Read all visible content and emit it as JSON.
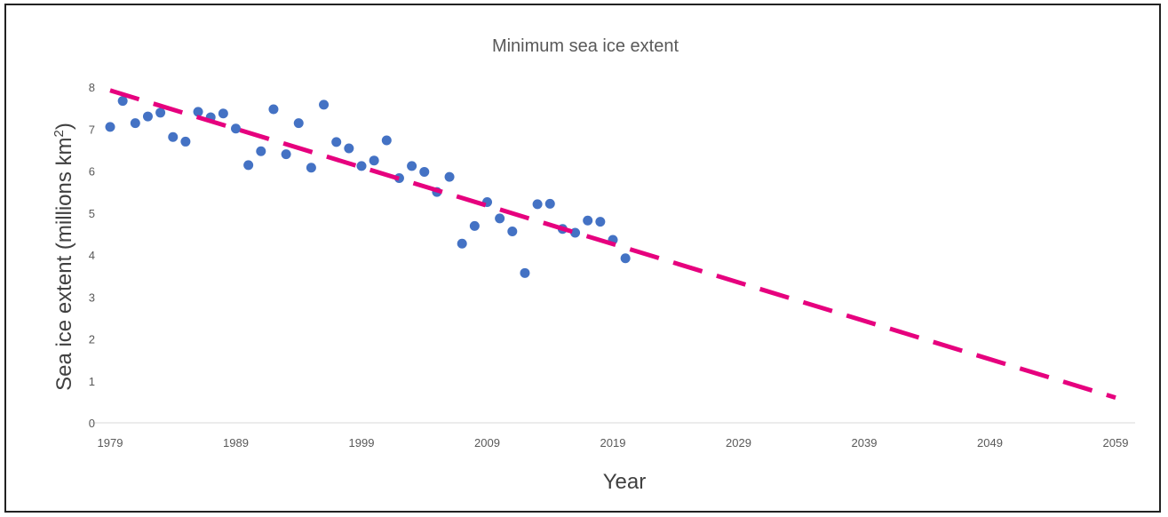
{
  "chart_data": {
    "type": "scatter",
    "title": "Minimum sea ice extent",
    "xlabel": "Year",
    "ylabel_main": "Sea ice extent (millions km",
    "ylabel_sup": "2",
    "ylabel_close": ")",
    "xlim": [
      1979,
      2059
    ],
    "ylim": [
      0,
      8
    ],
    "xticks": [
      1979,
      1989,
      1999,
      2009,
      2019,
      2029,
      2039,
      2049,
      2059
    ],
    "yticks": [
      0,
      1,
      2,
      3,
      4,
      5,
      6,
      7,
      8
    ],
    "grid": false,
    "legend": "none",
    "series": [
      {
        "marker_color": "#4472C4",
        "points": [
          [
            1979,
            7.05
          ],
          [
            1980,
            7.67
          ],
          [
            1981,
            7.14
          ],
          [
            1982,
            7.3
          ],
          [
            1983,
            7.39
          ],
          [
            1984,
            6.81
          ],
          [
            1985,
            6.7
          ],
          [
            1986,
            7.41
          ],
          [
            1987,
            7.28
          ],
          [
            1988,
            7.37
          ],
          [
            1989,
            7.01
          ],
          [
            1990,
            6.14
          ],
          [
            1991,
            6.47
          ],
          [
            1992,
            7.47
          ],
          [
            1993,
            6.4
          ],
          [
            1994,
            7.14
          ],
          [
            1995,
            6.08
          ],
          [
            1996,
            7.58
          ],
          [
            1997,
            6.69
          ],
          [
            1998,
            6.54
          ],
          [
            1999,
            6.12
          ],
          [
            2000,
            6.25
          ],
          [
            2001,
            6.73
          ],
          [
            2002,
            5.83
          ],
          [
            2003,
            6.12
          ],
          [
            2004,
            5.98
          ],
          [
            2005,
            5.5
          ],
          [
            2006,
            5.86
          ],
          [
            2007,
            4.27
          ],
          [
            2008,
            4.69
          ],
          [
            2009,
            5.26
          ],
          [
            2010,
            4.87
          ],
          [
            2011,
            4.56
          ],
          [
            2012,
            3.57
          ],
          [
            2013,
            5.21
          ],
          [
            2014,
            5.22
          ],
          [
            2015,
            4.62
          ],
          [
            2016,
            4.53
          ],
          [
            2017,
            4.82
          ],
          [
            2018,
            4.79
          ],
          [
            2019,
            4.36
          ],
          [
            2020,
            3.92
          ]
        ]
      }
    ],
    "trendline": {
      "style": "dashed",
      "color": "#E6007E",
      "start": [
        1979,
        7.92
      ],
      "end": [
        2059,
        0.6
      ]
    }
  }
}
